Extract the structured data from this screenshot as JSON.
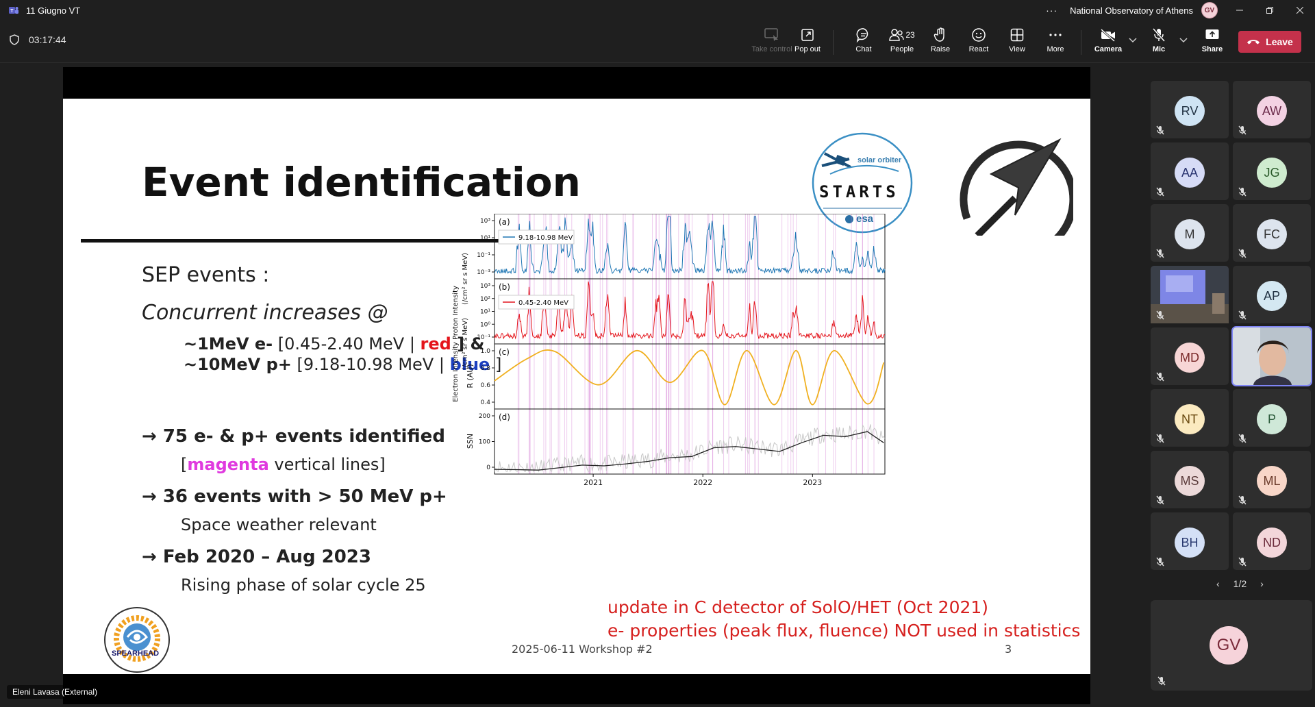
{
  "window": {
    "title": "11 Giugno VT",
    "organization": "National Observatory of Athens",
    "user_initials": "GV",
    "more_label": "···"
  },
  "meeting": {
    "elapsed": "03:17:44"
  },
  "toolbar": {
    "take_control": "Take control",
    "pop_out": "Pop out",
    "chat": "Chat",
    "people": "People",
    "people_count": "23",
    "raise": "Raise",
    "react": "React",
    "view": "View",
    "more": "More",
    "camera": "Camera",
    "mic": "Mic",
    "share": "Share",
    "leave": "Leave",
    "leave_color": "#c4314b"
  },
  "presenter": {
    "name": "Eleni Lavasa (External)"
  },
  "slide": {
    "title": "Event identification",
    "sep_heading": "SEP events :",
    "concurrent": "Concurrent increases @",
    "e_line_prefix": "~1MeV e-",
    "e_line_range": " [0.45-2.40 MeV | ",
    "e_line_color": "red",
    "e_line_suffix": " ] &",
    "p_line_prefix": "~10MeV p+",
    "p_line_range": " [9.18-10.98 MeV | ",
    "p_line_color": "blue",
    "p_line_suffix": " ]",
    "bullet1": "→ 75 e- & p+ events identified",
    "bullet1_sub_open": "[",
    "bullet1_sub_color": "magenta",
    "bullet1_sub_rest": " vertical lines]",
    "bullet2": "→ 36 events with > 50 MeV p+",
    "bullet2_sub": "Space weather relevant",
    "bullet3": "→ Feb 2020 – Aug 2023",
    "bullet3_sub": "Rising phase of solar cycle 25",
    "note1": "update in C detector of SolO/HET (Oct 2021)",
    "note2": "e- properties (peak flux, fluence) NOT used in statistics",
    "footer_date": "2025-06-11 Workshop #2",
    "page_number": "3",
    "logo_solo_text1": "solar orbiter",
    "logo_solo_text2": "STARTS",
    "logo_solo_text3": "esa",
    "logo_spearhead": "SPEARHEAD",
    "colors": {
      "red": "#e4141b",
      "blue": "#1c3fbf",
      "magenta": "#e03adf"
    }
  },
  "chart_data": {
    "type": "line",
    "x_ticks": [
      "2021",
      "2022",
      "2023"
    ],
    "panels": [
      {
        "label": "(a)",
        "ylabel": "Proton Intensity (/cm² sr s MeV)",
        "yticks": [
          "10³",
          "10¹",
          "10⁻¹",
          "10⁻³"
        ],
        "series": [
          {
            "name": "9.18-10.98 MeV",
            "color": "#1f77b4"
          }
        ]
      },
      {
        "label": "(b)",
        "ylabel": "Electron Intensity (/cm² sr s MeV)",
        "yticks": [
          "10³",
          "10²",
          "10¹",
          "10⁰",
          "10⁻¹"
        ],
        "series": [
          {
            "name": "0.45-2.40 MeV",
            "color": "#e4141b"
          }
        ]
      },
      {
        "label": "(c)",
        "ylabel": "R (AU)",
        "yticks": [
          "1.0",
          "0.8",
          "0.6",
          "0.4"
        ],
        "ylim": [
          0.3,
          1.05
        ],
        "series": [
          {
            "color": "#f0b020",
            "x": [
              2020.1,
              2020.4,
              2020.65,
              2021.05,
              2021.4,
              2021.7,
              2022.0,
              2022.2,
              2022.4,
              2022.65,
              2022.85,
              2023.0,
              2023.2,
              2023.5,
              2023.65
            ],
            "y": [
              0.62,
              0.9,
              0.99,
              0.57,
              1.0,
              0.6,
              1.0,
              0.32,
              1.0,
              0.32,
              1.0,
              0.32,
              1.0,
              0.33,
              0.85
            ]
          }
        ]
      },
      {
        "label": "(d)",
        "ylabel": "SSN",
        "yticks": [
          "200",
          "100",
          "0"
        ],
        "ylim": [
          0,
          240
        ],
        "series": [
          {
            "color": "#222222",
            "x": [
              2020.1,
              2020.3,
              2020.5,
              2020.7,
              2020.9,
              2021.1,
              2021.3,
              2021.5,
              2021.7,
              2021.9,
              2022.1,
              2022.3,
              2022.5,
              2022.7,
              2022.9,
              2023.1,
              2023.3,
              2023.5,
              2023.65
            ],
            "y": [
              8,
              7,
              5,
              15,
              25,
              22,
              30,
              40,
              55,
              60,
              95,
              100,
              90,
              80,
              115,
              145,
              140,
              160,
              115
            ]
          }
        ]
      }
    ],
    "event_line_color": "#d070d0"
  },
  "participants": [
    {
      "initials": "RV",
      "bg": "#cfe4f4",
      "fg": "#234"
    },
    {
      "initials": "AW",
      "bg": "#f3d2e3",
      "fg": "#6a2a4a"
    },
    {
      "initials": "AA",
      "bg": "#d6dbf6",
      "fg": "#2a3470"
    },
    {
      "initials": "JG",
      "bg": "#cfeccf",
      "fg": "#2a5a2a"
    },
    {
      "initials": "M",
      "bg": "#dde4ee",
      "fg": "#333"
    },
    {
      "initials": "FC",
      "bg": "#dde4ee",
      "fg": "#333"
    },
    {
      "initials": "",
      "bg": "",
      "fg": "",
      "video": "room"
    },
    {
      "initials": "AP",
      "bg": "#d4e8f2",
      "fg": "#234"
    },
    {
      "initials": "MD",
      "bg": "#f7d6d6",
      "fg": "#7a2a2a"
    },
    {
      "initials": "",
      "bg": "",
      "fg": "",
      "video": "face"
    },
    {
      "initials": "NT",
      "bg": "#fbeac0",
      "fg": "#6a4a10"
    },
    {
      "initials": "P",
      "bg": "#cfe8d8",
      "fg": "#2a5a3a"
    },
    {
      "initials": "MS",
      "bg": "#ecd9d9",
      "fg": "#5a3a3a"
    },
    {
      "initials": "ML",
      "bg": "#f8d6c8",
      "fg": "#6a3a2a"
    },
    {
      "initials": "BH",
      "bg": "#d4e0f6",
      "fg": "#2a3a70"
    },
    {
      "initials": "ND",
      "bg": "#f3d6da",
      "fg": "#6a2a3a"
    }
  ],
  "rail": {
    "pager": "1/2",
    "self_initials": "GV"
  }
}
